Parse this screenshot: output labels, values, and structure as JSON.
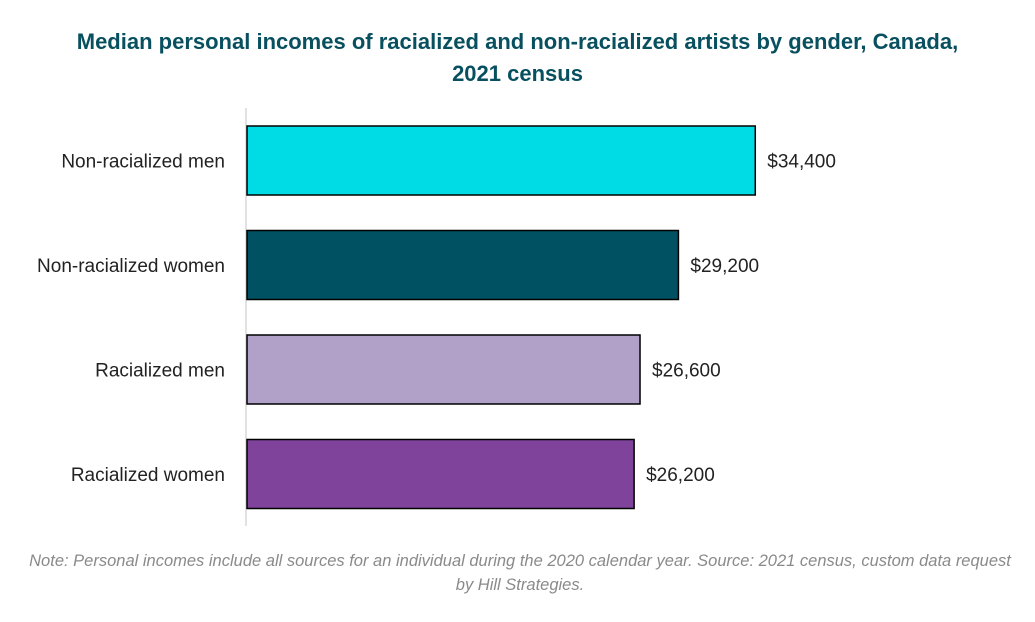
{
  "chart_data": {
    "type": "bar",
    "orientation": "horizontal",
    "title": "Median personal incomes of racialized and non-racialized artists by gender, Canada, 2021 census",
    "categories": [
      "Non-racialized men",
      "Non-racialized women",
      "Racialized men",
      "Racialized women"
    ],
    "values": [
      34400,
      29200,
      26600,
      26200
    ],
    "value_labels": [
      "$34,400",
      "$29,200",
      "$26,600",
      "$26,200"
    ],
    "colors": [
      "#00dce5",
      "#005263",
      "#b1a1c8",
      "#7f439c"
    ],
    "xlabel": "",
    "ylabel": "",
    "xlim": [
      0,
      40000
    ],
    "grid": false,
    "legend": "none",
    "note": "Note: Personal incomes include all sources for an individual during the 2020 calendar year. Source: 2021 census, custom data request by Hill Strategies."
  }
}
